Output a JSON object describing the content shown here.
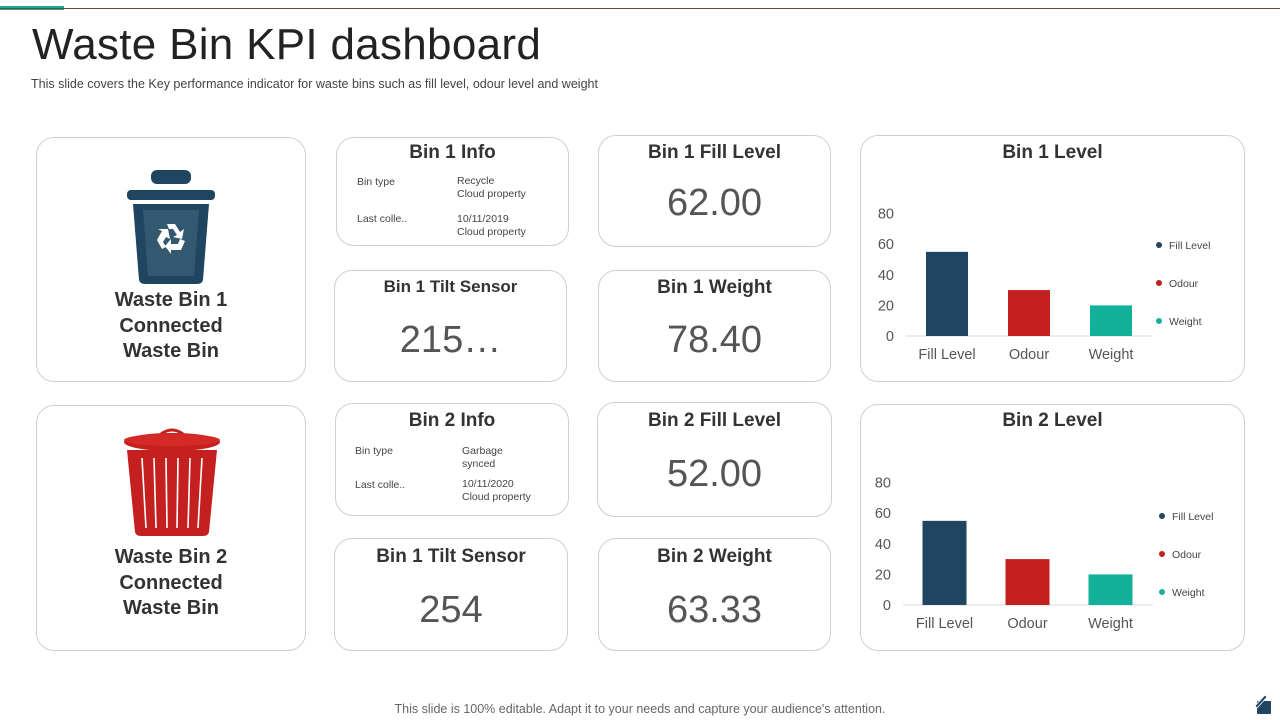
{
  "header": {
    "title": "Waste Bin KPI dashboard",
    "subtitle": "This slide covers the Key performance  indicator for waste bins such as fill level,  odour level  and weight"
  },
  "bin1": {
    "name_lines": [
      "Waste Bin 1",
      "Connected",
      "Waste Bin"
    ],
    "icon": "recycle-bin-icon",
    "info": {
      "title": "Bin 1 Info",
      "rows": [
        {
          "label": "Bin type",
          "value_lines": [
            "Recycle",
            "Cloud property"
          ]
        },
        {
          "label": "Last colle..",
          "value_lines": [
            "10/11/2019",
            "Cloud property"
          ]
        }
      ]
    },
    "tilt": {
      "title": "Bin 1 Tilt Sensor",
      "value": "215…"
    },
    "fill": {
      "title": "Bin 1 Fill Level",
      "value": "62.00"
    },
    "weight": {
      "title": "Bin 1 Weight",
      "value": "78.40"
    }
  },
  "bin2": {
    "name_lines": [
      "Waste Bin 2",
      "Connected",
      "Waste Bin"
    ],
    "icon": "trash-can-icon",
    "info": {
      "title": "Bin 2 Info",
      "rows": [
        {
          "label": "Bin type",
          "value_lines": [
            "Garbage",
            "synced"
          ]
        },
        {
          "label": "Last colle..",
          "value_lines": [
            "10/11/2020",
            "Cloud property"
          ]
        }
      ]
    },
    "tilt": {
      "title": "Bin 1 Tilt Sensor",
      "value": "254"
    },
    "fill": {
      "title": "Bin 2 Fill Level",
      "value": "52.00"
    },
    "weight": {
      "title": "Bin 2 Weight",
      "value": "63.33"
    }
  },
  "colors": {
    "fill_level": "#1f4560",
    "odour": "#c4201f",
    "weight": "#13b09a",
    "accent": "#1aa89a"
  },
  "chart_data": [
    {
      "type": "bar",
      "title": "Bin 1 Level",
      "categories": [
        "Fill Level",
        "Odour",
        "Weight"
      ],
      "values": [
        55,
        30,
        20
      ],
      "yticks": [
        0,
        20,
        40,
        60,
        80
      ],
      "ylim": [
        0,
        80
      ],
      "legend": [
        "Fill Level",
        "Odour",
        "Weight"
      ],
      "legend_position": "right",
      "grid": false
    },
    {
      "type": "bar",
      "title": "Bin 2 Level",
      "categories": [
        "Fill Level",
        "Odour",
        "Weight"
      ],
      "values": [
        55,
        30,
        20
      ],
      "yticks": [
        0,
        20,
        40,
        60,
        80
      ],
      "ylim": [
        0,
        80
      ],
      "legend": [
        "Fill Level",
        "Odour",
        "Weight"
      ],
      "legend_position": "right",
      "grid": false
    }
  ],
  "footer": {
    "text": "This slide is 100% editable. Adapt it to your needs and capture your audience's attention.",
    "icon": "edit-icon"
  }
}
